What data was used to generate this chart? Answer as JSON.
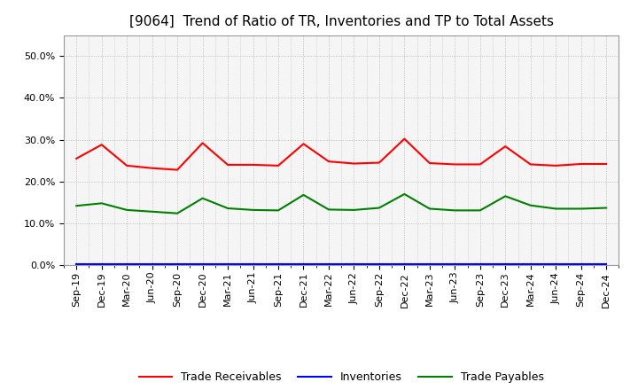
{
  "title": "[9064]  Trend of Ratio of TR, Inventories and TP to Total Assets",
  "x_labels": [
    "Sep-19",
    "Dec-19",
    "Mar-20",
    "Jun-20",
    "Sep-20",
    "Dec-20",
    "Mar-21",
    "Jun-21",
    "Sep-21",
    "Dec-21",
    "Mar-22",
    "Jun-22",
    "Sep-22",
    "Dec-22",
    "Mar-23",
    "Jun-23",
    "Sep-23",
    "Dec-23",
    "Mar-24",
    "Jun-24",
    "Sep-24",
    "Dec-24"
  ],
  "trade_receivables": [
    0.255,
    0.288,
    0.238,
    0.232,
    0.228,
    0.292,
    0.24,
    0.24,
    0.238,
    0.29,
    0.248,
    0.243,
    0.245,
    0.302,
    0.244,
    0.241,
    0.241,
    0.284,
    0.241,
    0.238,
    0.242,
    0.242
  ],
  "inventories": [
    0.002,
    0.002,
    0.002,
    0.002,
    0.002,
    0.002,
    0.002,
    0.002,
    0.002,
    0.002,
    0.002,
    0.002,
    0.002,
    0.002,
    0.002,
    0.002,
    0.002,
    0.002,
    0.002,
    0.002,
    0.002,
    0.002
  ],
  "trade_payables": [
    0.142,
    0.148,
    0.132,
    0.128,
    0.124,
    0.16,
    0.136,
    0.132,
    0.131,
    0.168,
    0.133,
    0.132,
    0.137,
    0.17,
    0.135,
    0.131,
    0.131,
    0.165,
    0.143,
    0.135,
    0.135,
    0.137
  ],
  "color_tr": "#ff0000",
  "color_inv": "#0000ff",
  "color_tp": "#008000",
  "ylim": [
    0.0,
    0.55
  ],
  "yticks": [
    0.0,
    0.1,
    0.2,
    0.3,
    0.4,
    0.5
  ],
  "bg_color": "#ffffff",
  "plot_bg_color": "#f5f5f5",
  "grid_color": "#bbbbbb",
  "title_fontsize": 11,
  "tick_fontsize": 8,
  "legend_labels": [
    "Trade Receivables",
    "Inventories",
    "Trade Payables"
  ]
}
